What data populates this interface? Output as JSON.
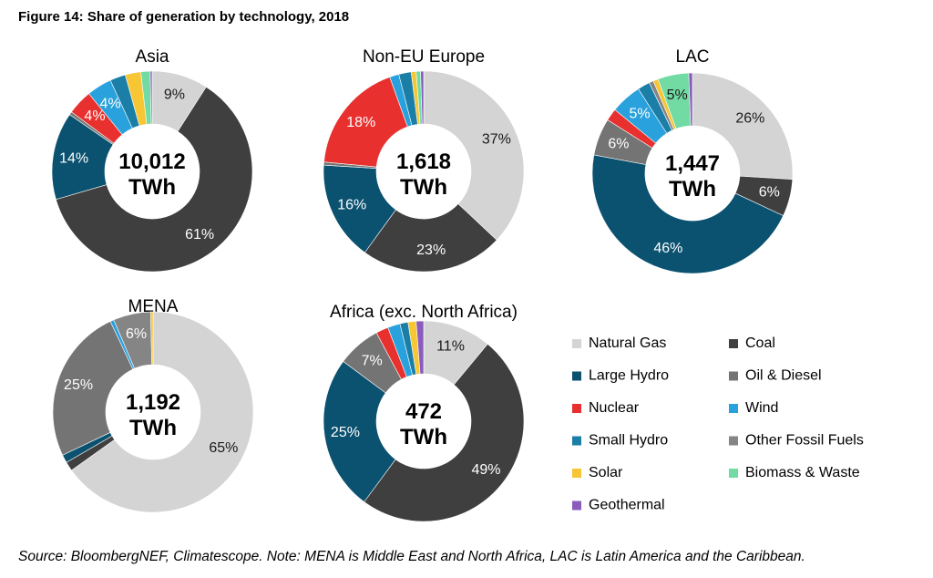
{
  "figure_title": "Figure 14: Share of generation by technology, 2018",
  "source": "Source: BloombergNEF, Climatescope. Note: MENA is Middle East and North Africa, LAC is Latin America and the Caribbean.",
  "chart_data": [
    {
      "type": "pie",
      "title": "Asia",
      "center_label": [
        "10,012",
        "TWh"
      ],
      "categories": [
        "Natural Gas",
        "Coal",
        "Large Hydro",
        "Oil & Diesel",
        "Nuclear",
        "Wind",
        "Small Hydro",
        "Other Fossil Fuels",
        "Solar",
        "Biomass & Waste",
        "Geothermal"
      ],
      "values": [
        9,
        61,
        14,
        0.5,
        4,
        4,
        2.5,
        0,
        2.5,
        1.5,
        0.3
      ],
      "labels": [
        "9%",
        "61%",
        "14%",
        "",
        "4%",
        "4%",
        "",
        "",
        "",
        "",
        ""
      ]
    },
    {
      "type": "pie",
      "title": "Non-EU  Europe",
      "center_label": [
        "1,618",
        "TWh"
      ],
      "categories": [
        "Natural Gas",
        "Coal",
        "Large Hydro",
        "Oil & Diesel",
        "Nuclear",
        "Wind",
        "Small Hydro",
        "Other Fossil Fuels",
        "Solar",
        "Biomass & Waste",
        "Geothermal"
      ],
      "values": [
        37,
        23,
        16,
        0.5,
        18,
        1.5,
        2,
        0,
        0.8,
        0.7,
        0.5
      ],
      "labels": [
        "37%",
        "23%",
        "16%",
        "",
        "18%",
        "",
        "",
        "",
        "",
        "",
        ""
      ]
    },
    {
      "type": "pie",
      "title": "LAC",
      "center_label": [
        "1,447",
        "TWh"
      ],
      "categories": [
        "Natural Gas",
        "Coal",
        "Large Hydro",
        "Oil & Diesel",
        "Nuclear",
        "Wind",
        "Small Hydro",
        "Other Fossil Fuels",
        "Solar",
        "Biomass & Waste",
        "Geothermal"
      ],
      "values": [
        26,
        6,
        46,
        6,
        2,
        5,
        2,
        0.7,
        0.8,
        5,
        0.6
      ],
      "labels": [
        "26%",
        "6%",
        "46%",
        "6%",
        "",
        "5%",
        "",
        "",
        "",
        "5%",
        ""
      ]
    },
    {
      "type": "pie",
      "title": "MENA",
      "center_label": [
        "1,192",
        "TWh"
      ],
      "categories": [
        "Natural Gas",
        "Coal",
        "Large Hydro",
        "Oil & Diesel",
        "Nuclear",
        "Wind",
        "Small Hydro",
        "Other Fossil Fuels",
        "Solar",
        "Biomass & Waste",
        "Geothermal"
      ],
      "values": [
        65,
        1.5,
        1.3,
        25,
        0,
        0.6,
        0,
        6,
        0.4,
        0,
        0
      ],
      "labels": [
        "65%",
        "",
        "",
        "25%",
        "",
        "",
        "",
        "6%",
        "",
        "",
        ""
      ]
    },
    {
      "type": "pie",
      "title": "Africa (exc. North Africa)",
      "center_label": [
        "472",
        "TWh"
      ],
      "categories": [
        "Natural Gas",
        "Coal",
        "Large Hydro",
        "Oil & Diesel",
        "Nuclear",
        "Wind",
        "Small Hydro",
        "Other Fossil Fuels",
        "Solar",
        "Biomass & Waste",
        "Geothermal"
      ],
      "values": [
        11,
        49,
        25,
        7,
        2,
        2,
        1.3,
        0,
        1.3,
        0,
        1.2
      ],
      "labels": [
        "11%",
        "49%",
        "25%",
        "7%",
        "",
        "",
        "",
        "",
        "",
        "",
        ""
      ]
    }
  ],
  "legend": {
    "placement": "bottom-right",
    "items": [
      {
        "label": "Natural Gas",
        "color": "#d4d4d4"
      },
      {
        "label": "Coal",
        "color": "#3f3f3f"
      },
      {
        "label": "Large Hydro",
        "color": "#0b5170"
      },
      {
        "label": "Oil & Diesel",
        "color": "#747474"
      },
      {
        "label": "Nuclear",
        "color": "#e8312f"
      },
      {
        "label": "Wind",
        "color": "#29a1dc"
      },
      {
        "label": "Small Hydro",
        "color": "#1b7ea6"
      },
      {
        "label": "Other Fossil Fuels",
        "color": "#858585"
      },
      {
        "label": "Solar",
        "color": "#f6c634"
      },
      {
        "label": "Biomass & Waste",
        "color": "#72dba3"
      },
      {
        "label": "Geothermal",
        "color": "#8a5cbc"
      }
    ]
  },
  "label_colors": {
    "dark": "#1a1a1a",
    "light": "#ffffff"
  }
}
